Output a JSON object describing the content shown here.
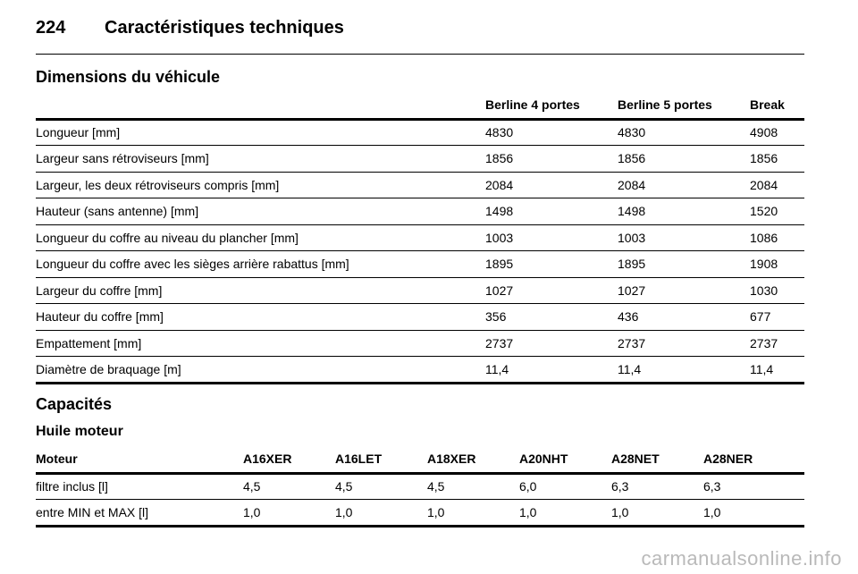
{
  "header": {
    "page_number": "224",
    "title": "Caractéristiques techniques"
  },
  "dimensions": {
    "title": "Dimensions du véhicule",
    "columns": [
      "",
      "Berline 4 portes",
      "Berline 5 portes",
      "Break"
    ],
    "rows": [
      [
        "Longueur [mm]",
        "4830",
        "4830",
        "4908"
      ],
      [
        "Largeur sans rétroviseurs [mm]",
        "1856",
        "1856",
        "1856"
      ],
      [
        "Largeur, les deux rétroviseurs compris [mm]",
        "2084",
        "2084",
        "2084"
      ],
      [
        "Hauteur (sans antenne) [mm]",
        "1498",
        "1498",
        "1520"
      ],
      [
        "Longueur du coffre au niveau du plancher [mm]",
        "1003",
        "1003",
        "1086"
      ],
      [
        "Longueur du coffre avec les sièges arrière rabattus [mm]",
        "1895",
        "1895",
        "1908"
      ],
      [
        "Largeur du coffre [mm]",
        "1027",
        "1027",
        "1030"
      ],
      [
        "Hauteur du coffre [mm]",
        "356",
        "436",
        "677"
      ],
      [
        "Empattement [mm]",
        "2737",
        "2737",
        "2737"
      ],
      [
        "Diamètre de braquage [m]",
        "11,4",
        "11,4",
        "11,4"
      ]
    ]
  },
  "capacities": {
    "title": "Capacités",
    "oil": {
      "title": "Huile moteur",
      "columns": [
        "Moteur",
        "A16XER",
        "A16LET",
        "A18XER",
        "A20NHT",
        "A28NET",
        "A28NER"
      ],
      "rows": [
        [
          "filtre inclus [l]",
          "4,5",
          "4,5",
          "4,5",
          "6,0",
          "6,3",
          "6,3"
        ],
        [
          "entre MIN et MAX [l]",
          "1,0",
          "1,0",
          "1,0",
          "1,0",
          "1,0",
          "1,0"
        ]
      ]
    }
  },
  "watermark": "carmanualsonline.info"
}
